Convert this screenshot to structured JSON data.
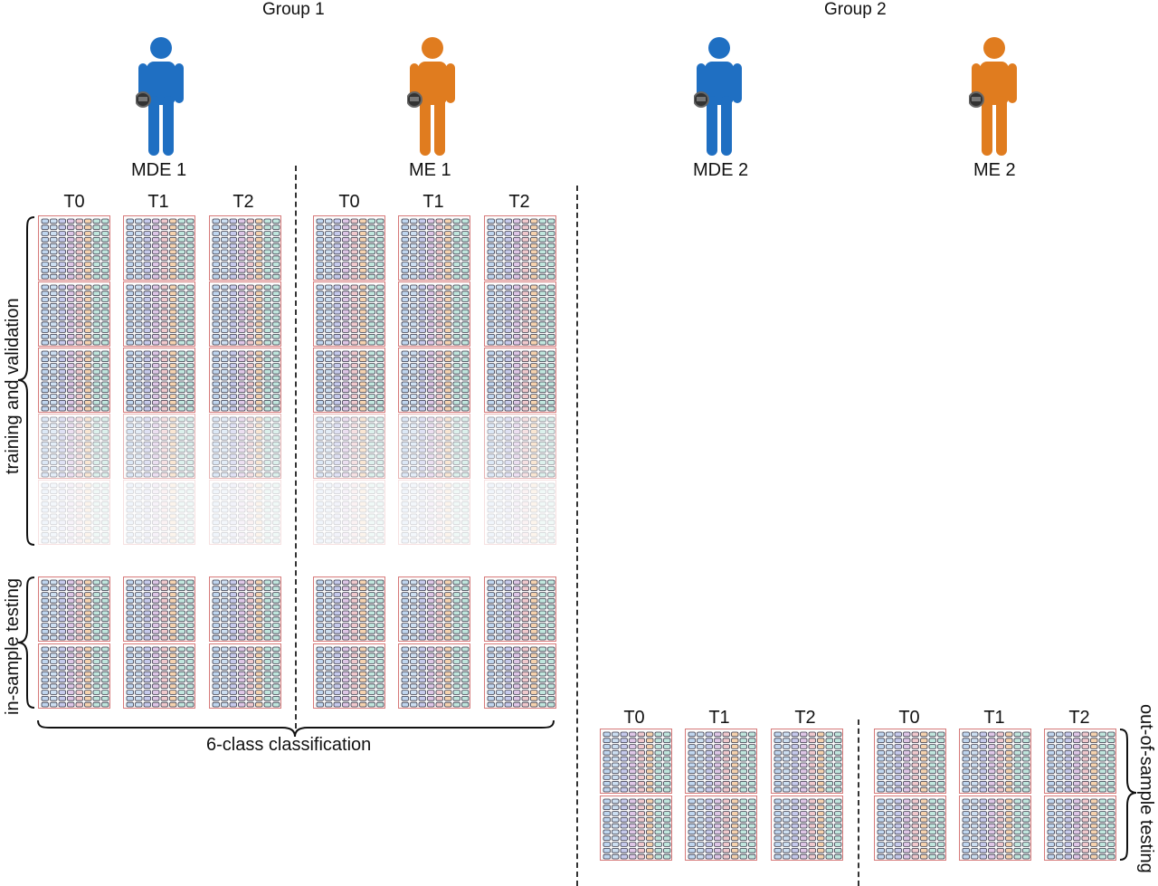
{
  "groups": {
    "group1": "Group 1",
    "group2": "Group 2"
  },
  "persons": [
    {
      "label": "MDE 1",
      "color": "#1f6fc2",
      "icon": "person-icon"
    },
    {
      "label": "ME 1",
      "color": "#e07c1f",
      "icon": "person-icon"
    },
    {
      "label": "MDE 2",
      "color": "#1f6fc2",
      "icon": "person-icon"
    },
    {
      "label": "ME 2",
      "color": "#e07c1f",
      "icon": "person-icon"
    }
  ],
  "time_labels": [
    "T0",
    "T1",
    "T2"
  ],
  "sections": {
    "training": "training and validation",
    "in_sample": "in-sample testing",
    "classification": "6-class classification",
    "out_of_sample": "out-of-sample testing"
  },
  "colors": {
    "block_border": "#d77a7a",
    "cell_palette": [
      "#8fb8e6",
      "#a8c8ea",
      "#9aa3e0",
      "#c79ad6",
      "#e8a0a8",
      "#f0b070",
      "#8fd6c4"
    ]
  }
}
